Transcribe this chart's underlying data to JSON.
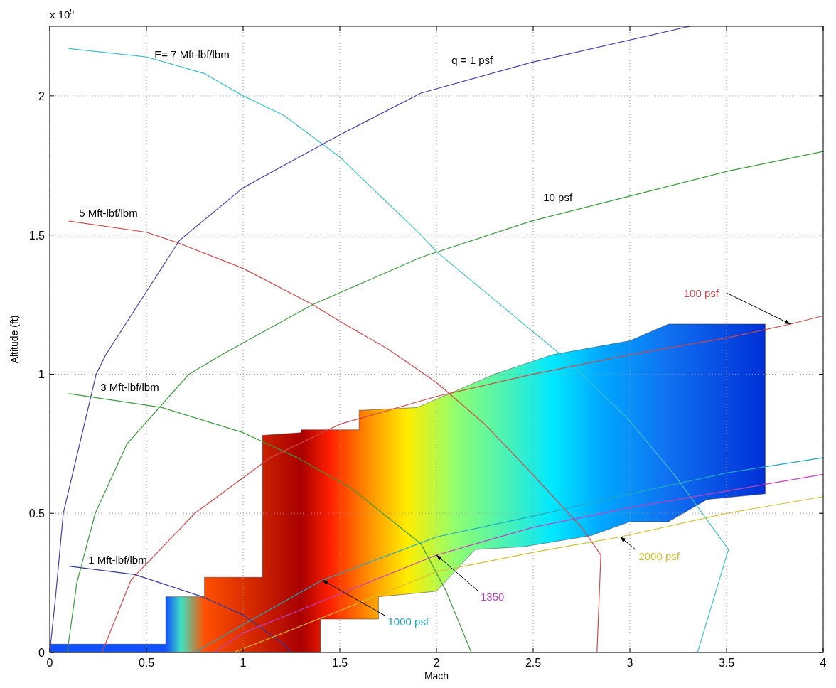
{
  "chart_data": {
    "type": "line",
    "xlabel": "Mach",
    "ylabel": "Altitude (ft)",
    "annotations": [
      "x 10$^{5}$"
    ],
    "xlim": [
      0,
      4
    ],
    "xticks": [
      0,
      0.5,
      1,
      1.5,
      2,
      2.5,
      3,
      3.5,
      4
    ],
    "ylim": [
      0,
      2.25
    ],
    "yticks": [
      0,
      0.5,
      1,
      1.5,
      2
    ],
    "grid": true,
    "line_style": "solid",
    "marker": "none",
    "legend": false,
    "series": [
      {
        "name": "E= 7 Mft-lbf/lbm",
        "color": "#40c0d0",
        "x": [
          0.1,
          0.5,
          0.8,
          1.0,
          1.21,
          1.5,
          1.92,
          2.0,
          2.66,
          2.99,
          3.24,
          3.51,
          3.35
        ],
        "values": [
          2.17,
          2.14,
          2.08,
          2.0,
          1.93,
          1.78,
          1.5,
          1.44,
          1.06,
          0.84,
          0.63,
          0.37,
          0
        ]
      },
      {
        "name": "5 Mft-lbf/lbm",
        "color": "#d04848",
        "x": [
          0.1,
          0.5,
          0.67,
          1.0,
          1.36,
          1.5,
          1.75,
          2.0,
          2.25,
          2.47,
          2.75,
          2.85,
          2.83
        ],
        "values": [
          1.55,
          1.51,
          1.47,
          1.38,
          1.25,
          1.19,
          1.09,
          0.97,
          0.82,
          0.66,
          0.45,
          0.35,
          0
        ]
      },
      {
        "name": "3 Mft-lbf/lbm",
        "color": "#3a9a3a",
        "x": [
          0.1,
          0.58,
          1.0,
          1.28,
          1.56,
          1.92,
          2.05,
          2.18
        ],
        "values": [
          0.93,
          0.88,
          0.79,
          0.7,
          0.59,
          0.39,
          0.22,
          0
        ]
      },
      {
        "name": "1 Mft-lbf/lbm",
        "color": "#303898",
        "x": [
          0.1,
          0.44,
          0.79,
          1.0,
          1.21,
          1.25
        ],
        "values": [
          0.31,
          0.28,
          0.2,
          0.135,
          0.03,
          0
        ]
      },
      {
        "name": "q = 1 psf",
        "color": "#4040a8",
        "x": [
          0,
          0.03,
          0.07,
          0.24,
          0.29,
          0.67,
          1.0,
          1.5,
          1.92,
          2.49,
          3.31
        ],
        "values": [
          0,
          0.2,
          0.5,
          1.0,
          1.07,
          1.48,
          1.67,
          1.86,
          2.01,
          2.12,
          2.25
        ]
      },
      {
        "name": "10 psf",
        "color": "#3a9a3a",
        "x": [
          0.09,
          0.14,
          0.235,
          0.4,
          0.72,
          0.89,
          1.36,
          1.92,
          2.49,
          3.0,
          3.51,
          4.0
        ],
        "values": [
          0,
          0.25,
          0.5,
          0.75,
          1.0,
          1.07,
          1.25,
          1.42,
          1.55,
          1.64,
          1.73,
          1.8
        ]
      },
      {
        "name": "100 psf",
        "color": "#d04848",
        "x": [
          0.27,
          0.42,
          0.75,
          1.14,
          1.5,
          2.0,
          2.5,
          3.0,
          3.5,
          3.83,
          4.0
        ],
        "values": [
          0,
          0.26,
          0.5,
          0.7,
          0.82,
          0.92,
          1.0,
          1.07,
          1.13,
          1.18,
          1.21
        ]
      },
      {
        "name": "1000 psf",
        "color": "#20a8c0",
        "x": [
          0.75,
          1.0,
          1.41,
          2.0,
          2.5,
          3.0,
          3.5,
          4.0
        ],
        "values": [
          0,
          0.1,
          0.26,
          0.415,
          0.49,
          0.57,
          0.645,
          0.7
        ]
      },
      {
        "name": "1350",
        "color": "#c040c0",
        "x": [
          0.85,
          1.0,
          1.5,
          2.0,
          2.5,
          3.0,
          3.5,
          4.0
        ],
        "values": [
          0,
          0.07,
          0.21,
          0.35,
          0.45,
          0.52,
          0.58,
          0.64
        ]
      },
      {
        "name": "2000 psf",
        "color": "#d0c030",
        "x": [
          0.95,
          1.5,
          2.0,
          2.5,
          2.95,
          3.5,
          4.0
        ],
        "values": [
          0,
          0.15,
          0.29,
          0.36,
          0.415,
          0.5,
          0.56
        ]
      }
    ]
  }
}
